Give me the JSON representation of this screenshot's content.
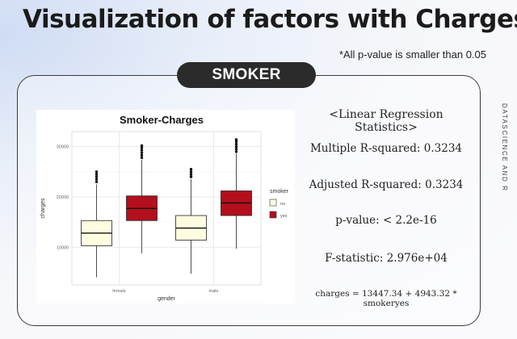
{
  "slide": {
    "title": "Visualization of factors with Charges",
    "note": "*All p-value is smaller than 0.05",
    "section": "SMOKER",
    "side_label": "DATASCIENCE AND R"
  },
  "stats": {
    "heading": "<Linear Regression Statistics>",
    "multiple_r2": "Multiple R-squared: 0.3234",
    "adjusted_r2": "Adjusted R-squared: 0.3234",
    "p_value": "p-value: < 2.2e-16",
    "f_statistic": "F-statistic: 2.976e+04",
    "equation": "charges = 13447.34 + 4943.32 * smokeryes"
  },
  "colors": {
    "no": "#fffde0",
    "yes": "#b30f1d"
  },
  "chart_data": {
    "type": "boxplot",
    "title": "Smoker-Charges",
    "xlabel": "gender",
    "ylabel": "charges",
    "categories": [
      "female",
      "male"
    ],
    "y_ticks": [
      "10000",
      "20000",
      "30000"
    ],
    "ylim": [
      2500,
      33000
    ],
    "legend": {
      "title": "smoker",
      "position": "right"
    },
    "grid": true,
    "series": [
      {
        "name": "no",
        "boxes": [
          {
            "category": "female",
            "min": 4000,
            "q1": 10300,
            "median": 12800,
            "q3": 15300,
            "max": 22500,
            "outliers": [
              23000,
              23500,
              24000,
              24500,
              25000
            ]
          },
          {
            "category": "male",
            "min": 4700,
            "q1": 11400,
            "median": 13800,
            "q3": 16300,
            "max": 23500,
            "outliers": [
              24000,
              24500,
              25000,
              25500
            ]
          }
        ]
      },
      {
        "name": "yes",
        "boxes": [
          {
            "category": "female",
            "min": 8800,
            "q1": 15300,
            "median": 17700,
            "q3": 20200,
            "max": 27400,
            "outliers": [
              27800,
              28300,
              28800,
              29300,
              29800,
              30200
            ]
          },
          {
            "category": "male",
            "min": 9700,
            "q1": 16300,
            "median": 18800,
            "q3": 21200,
            "max": 28600,
            "outliers": [
              29000,
              29500,
              30000,
              30500,
              31000,
              31400
            ]
          }
        ]
      }
    ]
  }
}
